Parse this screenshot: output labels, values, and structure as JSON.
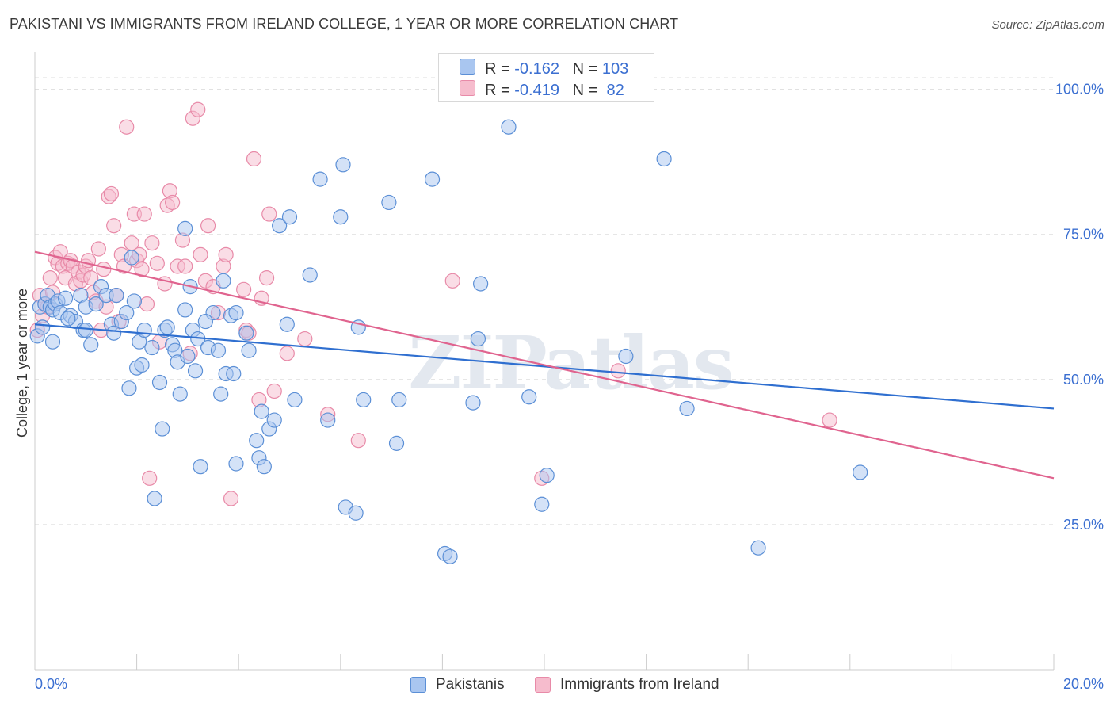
{
  "title": "PAKISTANI VS IMMIGRANTS FROM IRELAND COLLEGE, 1 YEAR OR MORE CORRELATION CHART",
  "source": "Source: ZipAtlas.com",
  "watermark": "ZIPatlas",
  "colors": {
    "blue_fill": "#a9c6f0",
    "blue_stroke": "#5b8fd6",
    "blue_line": "#2f6fd0",
    "pink_fill": "#f6bccd",
    "pink_stroke": "#e88aa8",
    "pink_line": "#e0648f",
    "accent_text": "#3b6fd1",
    "grid": "#dddddd"
  },
  "legend_top": {
    "rows": [
      {
        "r_label": "R = ",
        "r_value": "-0.162",
        "n_label": "N = ",
        "n_value": "103"
      },
      {
        "r_label": "R = ",
        "r_value": "-0.419",
        "n_label": "N = ",
        "n_value": " 82"
      }
    ]
  },
  "legend_bottom": [
    "Pakistanis",
    "Immigrants from Ireland"
  ],
  "chart_data": {
    "type": "scatter",
    "title": "PAKISTANI VS IMMIGRANTS FROM IRELAND COLLEGE, 1 YEAR OR MORE CORRELATION CHART",
    "xlabel": "",
    "ylabel": "College, 1 year or more",
    "xlim": [
      0,
      20
    ],
    "ylim": [
      0,
      105
    ],
    "x_tick_labels": [
      "0.0%",
      "20.0%"
    ],
    "y_tick_labels": [
      "25.0%",
      "50.0%",
      "75.0%",
      "100.0%"
    ],
    "y_ticks": [
      25,
      50,
      75,
      100
    ],
    "grid": true,
    "series": [
      {
        "name": "Pakistanis",
        "r": -0.162,
        "n": 103,
        "trend": {
          "x": [
            0,
            20
          ],
          "y": [
            59.5,
            45.0
          ]
        },
        "points": [
          [
            0.05,
            57.5
          ],
          [
            0.1,
            62.5
          ],
          [
            0.2,
            63.0
          ],
          [
            0.25,
            64.5
          ],
          [
            0.3,
            62.5
          ],
          [
            0.35,
            62.0
          ],
          [
            0.4,
            63.0
          ],
          [
            0.45,
            63.5
          ],
          [
            0.5,
            61.5
          ],
          [
            0.6,
            64.0
          ],
          [
            0.7,
            61.0
          ],
          [
            0.8,
            60.0
          ],
          [
            0.9,
            64.5
          ],
          [
            0.95,
            58.5
          ],
          [
            1.0,
            62.5
          ],
          [
            1.1,
            56.0
          ],
          [
            1.2,
            63.0
          ],
          [
            1.3,
            66.0
          ],
          [
            1.4,
            64.5
          ],
          [
            1.5,
            59.5
          ],
          [
            1.6,
            64.5
          ],
          [
            1.7,
            60.0
          ],
          [
            1.8,
            61.5
          ],
          [
            1.85,
            48.5
          ],
          [
            1.9,
            71.0
          ],
          [
            1.95,
            63.5
          ],
          [
            2.0,
            52.0
          ],
          [
            2.05,
            56.5
          ],
          [
            2.1,
            52.5
          ],
          [
            2.15,
            58.5
          ],
          [
            2.3,
            55.5
          ],
          [
            2.35,
            29.5
          ],
          [
            2.45,
            49.5
          ],
          [
            2.5,
            41.5
          ],
          [
            2.55,
            58.5
          ],
          [
            2.6,
            59.0
          ],
          [
            2.7,
            56.0
          ],
          [
            2.75,
            55.0
          ],
          [
            2.8,
            53.0
          ],
          [
            2.85,
            47.5
          ],
          [
            2.95,
            76.0
          ],
          [
            3.05,
            66.0
          ],
          [
            3.1,
            58.5
          ],
          [
            3.15,
            51.5
          ],
          [
            3.2,
            57.0
          ],
          [
            3.25,
            35.0
          ],
          [
            3.4,
            55.5
          ],
          [
            3.5,
            61.5
          ],
          [
            3.6,
            55.0
          ],
          [
            3.65,
            47.5
          ],
          [
            3.7,
            67.0
          ],
          [
            3.75,
            51.0
          ],
          [
            3.85,
            61.0
          ],
          [
            3.9,
            51.0
          ],
          [
            3.95,
            61.5
          ],
          [
            3.95,
            35.5
          ],
          [
            4.2,
            55.0
          ],
          [
            4.35,
            39.5
          ],
          [
            4.4,
            36.5
          ],
          [
            4.45,
            44.5
          ],
          [
            4.5,
            35.0
          ],
          [
            4.6,
            41.5
          ],
          [
            4.7,
            43.0
          ],
          [
            4.8,
            76.5
          ],
          [
            4.95,
            59.5
          ],
          [
            5.0,
            78.0
          ],
          [
            5.1,
            46.5
          ],
          [
            5.4,
            68.0
          ],
          [
            5.6,
            84.5
          ],
          [
            5.75,
            43.0
          ],
          [
            6.0,
            78.0
          ],
          [
            6.05,
            87.0
          ],
          [
            6.1,
            28.0
          ],
          [
            6.3,
            27.0
          ],
          [
            6.35,
            59.0
          ],
          [
            6.45,
            46.5
          ],
          [
            6.95,
            80.5
          ],
          [
            7.1,
            39.0
          ],
          [
            7.15,
            46.5
          ],
          [
            7.8,
            84.5
          ],
          [
            8.05,
            20.0
          ],
          [
            8.15,
            19.5
          ],
          [
            8.6,
            46.0
          ],
          [
            8.7,
            57.0
          ],
          [
            8.75,
            66.5
          ],
          [
            9.3,
            93.5
          ],
          [
            9.7,
            47.0
          ],
          [
            9.95,
            28.5
          ],
          [
            10.05,
            33.5
          ],
          [
            11.6,
            54.0
          ],
          [
            12.35,
            88.0
          ],
          [
            12.8,
            45.0
          ],
          [
            14.2,
            21.0
          ],
          [
            16.2,
            34.0
          ],
          [
            0.15,
            59.0
          ],
          [
            1.0,
            58.5
          ],
          [
            0.65,
            60.5
          ],
          [
            1.55,
            58.0
          ],
          [
            2.95,
            62.0
          ],
          [
            0.35,
            56.5
          ],
          [
            3.35,
            60.0
          ],
          [
            4.15,
            58.0
          ],
          [
            3.0,
            54.0
          ]
        ]
      },
      {
        "name": "Immigrants from Ireland",
        "r": -0.419,
        "n": 82,
        "trend": {
          "x": [
            0,
            20
          ],
          "y": [
            72.0,
            33.0
          ]
        },
        "points": [
          [
            0.05,
            58.5
          ],
          [
            0.1,
            64.5
          ],
          [
            0.15,
            61.0
          ],
          [
            0.2,
            63.0
          ],
          [
            0.3,
            67.5
          ],
          [
            0.35,
            65.0
          ],
          [
            0.4,
            71.0
          ],
          [
            0.45,
            70.0
          ],
          [
            0.5,
            72.0
          ],
          [
            0.55,
            69.5
          ],
          [
            0.6,
            67.5
          ],
          [
            0.65,
            70.0
          ],
          [
            0.7,
            70.5
          ],
          [
            0.75,
            69.5
          ],
          [
            0.8,
            66.5
          ],
          [
            0.85,
            68.5
          ],
          [
            0.9,
            67.0
          ],
          [
            0.95,
            68.0
          ],
          [
            1.0,
            69.5
          ],
          [
            1.05,
            70.5
          ],
          [
            1.1,
            67.5
          ],
          [
            1.15,
            65.0
          ],
          [
            1.2,
            63.5
          ],
          [
            1.25,
            72.5
          ],
          [
            1.3,
            58.5
          ],
          [
            1.35,
            69.0
          ],
          [
            1.4,
            62.5
          ],
          [
            1.45,
            81.5
          ],
          [
            1.5,
            82.0
          ],
          [
            1.55,
            76.5
          ],
          [
            1.6,
            64.5
          ],
          [
            1.65,
            60.0
          ],
          [
            1.7,
            71.5
          ],
          [
            1.75,
            69.5
          ],
          [
            1.8,
            93.5
          ],
          [
            1.9,
            73.5
          ],
          [
            1.95,
            78.5
          ],
          [
            2.0,
            70.5
          ],
          [
            2.05,
            71.5
          ],
          [
            2.1,
            69.0
          ],
          [
            2.15,
            78.5
          ],
          [
            2.2,
            63.0
          ],
          [
            2.25,
            33.0
          ],
          [
            2.3,
            73.5
          ],
          [
            2.4,
            70.0
          ],
          [
            2.45,
            56.5
          ],
          [
            2.55,
            66.5
          ],
          [
            2.6,
            80.0
          ],
          [
            2.65,
            82.5
          ],
          [
            2.7,
            80.5
          ],
          [
            2.8,
            69.5
          ],
          [
            2.9,
            74.0
          ],
          [
            2.95,
            69.5
          ],
          [
            3.05,
            54.5
          ],
          [
            3.1,
            95.0
          ],
          [
            3.2,
            96.5
          ],
          [
            3.25,
            71.5
          ],
          [
            3.35,
            67.0
          ],
          [
            3.4,
            76.5
          ],
          [
            3.5,
            66.0
          ],
          [
            3.6,
            61.5
          ],
          [
            3.7,
            69.5
          ],
          [
            3.75,
            71.5
          ],
          [
            3.85,
            29.5
          ],
          [
            4.1,
            65.5
          ],
          [
            4.15,
            58.5
          ],
          [
            4.2,
            58.0
          ],
          [
            4.3,
            88.0
          ],
          [
            4.4,
            46.5
          ],
          [
            4.45,
            64.0
          ],
          [
            4.55,
            67.5
          ],
          [
            4.6,
            78.5
          ],
          [
            4.7,
            48.0
          ],
          [
            4.95,
            54.5
          ],
          [
            5.3,
            57.0
          ],
          [
            5.75,
            44.0
          ],
          [
            6.35,
            39.5
          ],
          [
            8.2,
            67.0
          ],
          [
            9.95,
            33.0
          ],
          [
            11.45,
            51.5
          ],
          [
            15.6,
            43.0
          ],
          [
            0.25,
            62.5
          ]
        ]
      }
    ]
  }
}
